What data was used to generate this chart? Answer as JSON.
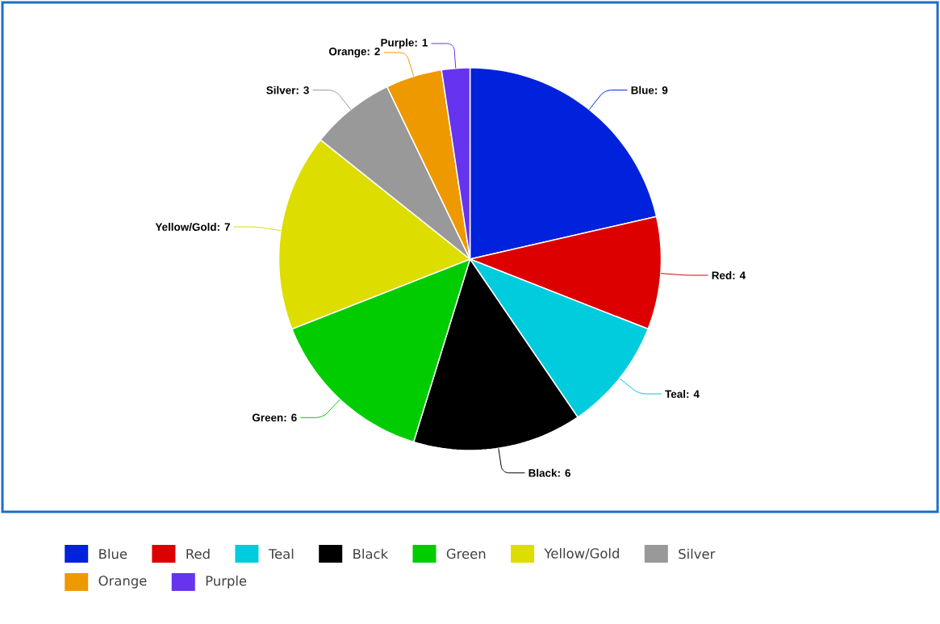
{
  "chart_data": {
    "type": "pie",
    "categories": [
      "Blue",
      "Red",
      "Teal",
      "Black",
      "Green",
      "Yellow/Gold",
      "Silver",
      "Orange",
      "Purple"
    ],
    "values": [
      9,
      4,
      4,
      6,
      6,
      7,
      3,
      2,
      1
    ],
    "colors": [
      "#0022dd",
      "#dd0000",
      "#00ccdd",
      "#000000",
      "#00cc00",
      "#dddd00",
      "#999999",
      "#ee9900",
      "#6633ee"
    ],
    "value_labels": [
      "Blue: 9",
      "Red: 4",
      "Teal: 4",
      "Black: 6",
      "Green: 6",
      "Yellow/Gold: 7",
      "Silver: 3",
      "Orange: 2",
      "Purple: 1"
    ],
    "legend": "bottom"
  }
}
